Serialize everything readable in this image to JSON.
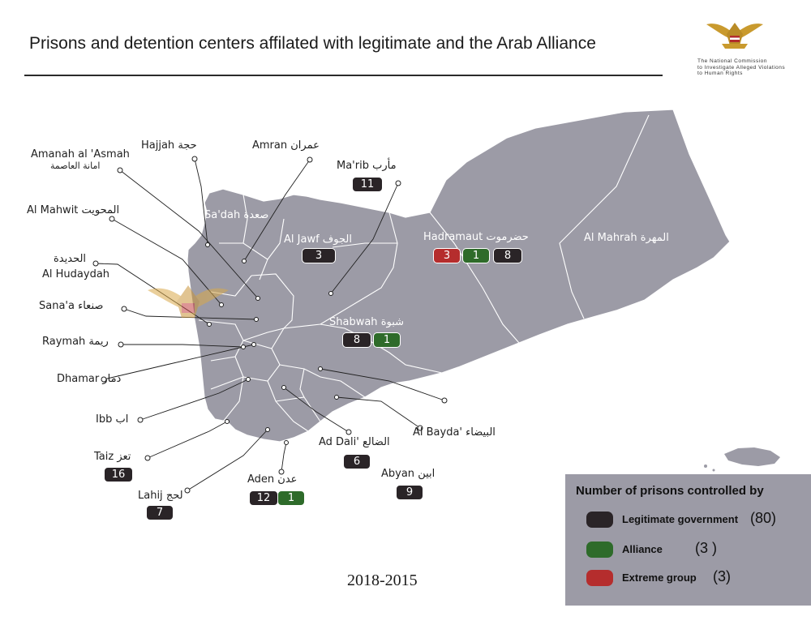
{
  "header": {
    "title": "Prisons and detention centers affilated with legitimate and the Arab Alliance",
    "logo_text": [
      "The National Commission",
      "to Investigate Alleged Violations",
      "to Human Rights"
    ]
  },
  "map": {
    "fill_color": "#9c9ba6",
    "border_color": "#ffffff",
    "regions": {
      "saada": "Sa'dah صعدة",
      "jawf": "Al Jawf الجوف",
      "marib": "Ma'rib مأرب",
      "hadramaut": "Hadramaut حضرموت",
      "mahrah": "Al Mahrah المهرة",
      "shabwah": "Shabwah شبوة",
      "hajjah": "Hajjah حجة",
      "amran": "Amran عمران",
      "amanah": "Amanah al 'Asmah",
      "amanah_ar": "امانة العاصمة",
      "mahwit": "Al Mahwit المحويت",
      "hudaydah_ar": "الحديدة",
      "hudaydah": "Al Hudaydah",
      "sanaa": "Sana'a صنعاء",
      "raymah": "Raymah ريمة",
      "dhamar": "Dhamar ذمار",
      "ibb": "Ibb اب",
      "taiz": "Taiz تعز",
      "lahij": "Lahij لحج",
      "aden": "Aden عدن",
      "dali": "Ad Dali' الضالع",
      "abyan": "Abyan ابين",
      "bayda": "Al Bayda' البيضاء"
    },
    "counts": {
      "marib": {
        "legit": "11"
      },
      "jawf": {
        "legit": "3"
      },
      "hadramaut": {
        "extreme": "3",
        "alliance": "1",
        "legit": "8"
      },
      "shabwah": {
        "legit": "8",
        "alliance": "1"
      },
      "taiz": {
        "legit": "16"
      },
      "lahij": {
        "legit": "7"
      },
      "aden": {
        "legit": "12",
        "alliance": "1"
      },
      "dali": {
        "legit": "6"
      },
      "abyan": {
        "legit": "9"
      }
    },
    "years": "2018-2015"
  },
  "legend": {
    "title": "Number of prisons controlled by",
    "items": [
      {
        "label": "Legitimate government",
        "count": "(80)",
        "color": "#2a2427"
      },
      {
        "label": "Alliance",
        "count": "(3 )",
        "color": "#2e6b2a"
      },
      {
        "label": "Extreme group",
        "count": "(3)",
        "color": "#b52d2d"
      }
    ]
  }
}
